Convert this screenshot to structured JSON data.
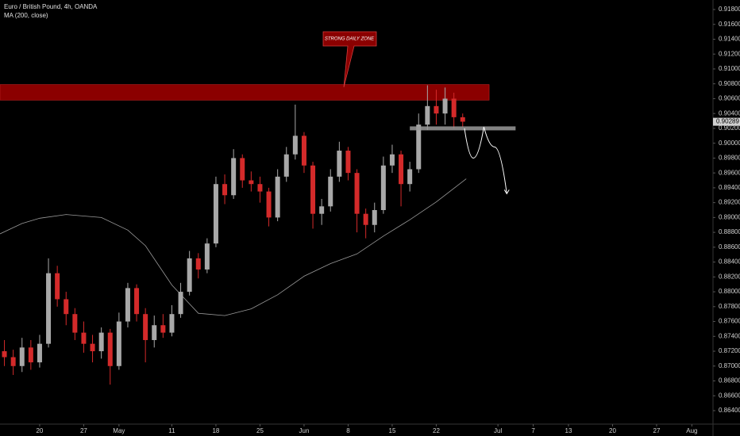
{
  "chart_data": {
    "type": "candlestick",
    "title": "Euro / British Pound, 4h, OANDA",
    "up_color": "#a8a8a8",
    "down_color": "#d42a2a",
    "grid": false,
    "xlim": [
      -4.5,
      76.4
    ],
    "xticks": [
      {
        "value": 0,
        "label": "20"
      },
      {
        "value": 5,
        "label": "27"
      },
      {
        "value": 9,
        "label": "May"
      },
      {
        "value": 15,
        "label": "11"
      },
      {
        "value": 20,
        "label": "18"
      },
      {
        "value": 25,
        "label": "25"
      },
      {
        "value": 30,
        "label": "Jun"
      },
      {
        "value": 35,
        "label": "8"
      },
      {
        "value": 40,
        "label": "15"
      },
      {
        "value": 45,
        "label": "22"
      },
      {
        "value": 52,
        "label": "Jul"
      },
      {
        "value": 56,
        "label": "7"
      },
      {
        "value": 60,
        "label": "13"
      },
      {
        "value": 65,
        "label": "20"
      },
      {
        "value": 70,
        "label": "27"
      },
      {
        "value": 74,
        "label": "Aug"
      }
    ],
    "ylim": [
      0.864,
      0.918
    ],
    "yticks": [
      {
        "value": 0.918,
        "label": "0.91800"
      },
      {
        "value": 0.916,
        "label": "0.91600"
      },
      {
        "value": 0.914,
        "label": "0.91400"
      },
      {
        "value": 0.912,
        "label": "0.91200"
      },
      {
        "value": 0.91,
        "label": "0.91000"
      },
      {
        "value": 0.908,
        "label": "0.90800"
      },
      {
        "value": 0.906,
        "label": "0.90600"
      },
      {
        "value": 0.904,
        "label": "0.90400"
      },
      {
        "value": 0.902,
        "label": "0.90200"
      },
      {
        "value": 0.9,
        "label": "0.90000"
      },
      {
        "value": 0.898,
        "label": "0.89800"
      },
      {
        "value": 0.896,
        "label": "0.89600"
      },
      {
        "value": 0.894,
        "label": "0.89400"
      },
      {
        "value": 0.892,
        "label": "0.89200"
      },
      {
        "value": 0.89,
        "label": "0.89000"
      },
      {
        "value": 0.888,
        "label": "0.88800"
      },
      {
        "value": 0.886,
        "label": "0.88600"
      },
      {
        "value": 0.884,
        "label": "0.88400"
      },
      {
        "value": 0.882,
        "label": "0.88200"
      },
      {
        "value": 0.88,
        "label": "0.88000"
      },
      {
        "value": 0.878,
        "label": "0.87800"
      },
      {
        "value": 0.876,
        "label": "0.87600"
      },
      {
        "value": 0.874,
        "label": "0.87400"
      },
      {
        "value": 0.872,
        "label": "0.87200"
      },
      {
        "value": 0.87,
        "label": "0.87000"
      },
      {
        "value": 0.868,
        "label": "0.86800"
      },
      {
        "value": 0.866,
        "label": "0.86600"
      },
      {
        "value": 0.864,
        "label": "0.86400"
      }
    ],
    "x": [
      -4,
      -3,
      -2,
      -1,
      0,
      1,
      2,
      3,
      4,
      5,
      6,
      7,
      8,
      9,
      10,
      11,
      12,
      13,
      14,
      15,
      16,
      17,
      18,
      19,
      20,
      21,
      22,
      23,
      24,
      25,
      26,
      27,
      28,
      29,
      30,
      31,
      32,
      33,
      34,
      35,
      36,
      37,
      38,
      39,
      40,
      41,
      42,
      43,
      44,
      45,
      46,
      47,
      48
    ],
    "open": [
      0.872,
      0.8712,
      0.87,
      0.8725,
      0.8705,
      0.873,
      0.8825,
      0.879,
      0.877,
      0.8745,
      0.873,
      0.872,
      0.8745,
      0.87,
      0.876,
      0.8805,
      0.877,
      0.8735,
      0.8755,
      0.8745,
      0.877,
      0.88,
      0.8845,
      0.883,
      0.8865,
      0.8945,
      0.893,
      0.898,
      0.895,
      0.8945,
      0.8935,
      0.89,
      0.8955,
      0.8985,
      0.901,
      0.897,
      0.8905,
      0.8915,
      0.8955,
      0.899,
      0.896,
      0.8905,
      0.889,
      0.891,
      0.897,
      0.8985,
      0.8945,
      0.8965,
      0.9025,
      0.905,
      0.904,
      0.906,
      0.9035
    ],
    "high": [
      0.8735,
      0.8722,
      0.8738,
      0.8735,
      0.8742,
      0.8845,
      0.8835,
      0.88,
      0.8778,
      0.876,
      0.8742,
      0.8752,
      0.875,
      0.8772,
      0.8812,
      0.881,
      0.8778,
      0.8768,
      0.877,
      0.8782,
      0.8812,
      0.8855,
      0.8852,
      0.8872,
      0.8955,
      0.8958,
      0.8992,
      0.8985,
      0.8962,
      0.8955,
      0.894,
      0.8965,
      0.8995,
      0.9052,
      0.9015,
      0.8975,
      0.8925,
      0.8965,
      0.9002,
      0.8995,
      0.8965,
      0.8912,
      0.892,
      0.8982,
      0.8998,
      0.899,
      0.8975,
      0.904,
      0.9078,
      0.9072,
      0.9075,
      0.9068,
      0.904
    ],
    "low": [
      0.87,
      0.8688,
      0.8692,
      0.8695,
      0.8698,
      0.8725,
      0.878,
      0.8755,
      0.8735,
      0.8718,
      0.8705,
      0.871,
      0.8675,
      0.8695,
      0.8752,
      0.876,
      0.8705,
      0.8725,
      0.8738,
      0.874,
      0.8765,
      0.8795,
      0.8818,
      0.8825,
      0.886,
      0.8918,
      0.8925,
      0.894,
      0.8935,
      0.892,
      0.8888,
      0.8895,
      0.8948,
      0.8978,
      0.896,
      0.8885,
      0.889,
      0.8908,
      0.8948,
      0.895,
      0.888,
      0.8872,
      0.888,
      0.8905,
      0.896,
      0.8915,
      0.8935,
      0.896,
      0.9018,
      0.9025,
      0.9025,
      0.902,
      0.9022
    ],
    "close": [
      0.8712,
      0.87,
      0.8725,
      0.8705,
      0.873,
      0.8825,
      0.879,
      0.877,
      0.8745,
      0.873,
      0.872,
      0.8745,
      0.87,
      0.876,
      0.8805,
      0.877,
      0.8735,
      0.8755,
      0.8745,
      0.877,
      0.88,
      0.8845,
      0.883,
      0.8865,
      0.8945,
      0.893,
      0.898,
      0.895,
      0.8945,
      0.8935,
      0.89,
      0.8955,
      0.8985,
      0.901,
      0.897,
      0.8905,
      0.8915,
      0.8955,
      0.899,
      0.896,
      0.8905,
      0.889,
      0.891,
      0.897,
      0.8985,
      0.8945,
      0.8965,
      0.9025,
      0.905,
      0.904,
      0.906,
      0.9035,
      0.9029
    ],
    "last_price": 0.90289,
    "ma": {
      "name": "MA (200, close)",
      "color": "#9a9a9a",
      "x": [
        -4.5,
        -2,
        0,
        3,
        7,
        10,
        12,
        15,
        18,
        21,
        24,
        27,
        30,
        33,
        36,
        39,
        42,
        45,
        48.4
      ],
      "values": [
        0.8878,
        0.8892,
        0.8899,
        0.8904,
        0.89,
        0.8883,
        0.8862,
        0.8809,
        0.8771,
        0.8768,
        0.8777,
        0.8796,
        0.8821,
        0.8838,
        0.8851,
        0.8875,
        0.8897,
        0.8921,
        0.8952
      ]
    },
    "zone": {
      "label": "STRONG DAILY ZONE",
      "color": "#8b0000",
      "x": [
        -4.5,
        51
      ],
      "y": [
        0.9058,
        0.9079
      ]
    },
    "level": {
      "color": "#9a9a9a",
      "x": [
        42,
        54
      ],
      "y": 0.902
    },
    "projection": {
      "color": "#ffffff",
      "x": [
        48.2,
        49.2,
        50.4,
        51.6,
        53
      ],
      "values": [
        0.902,
        0.898,
        0.9022,
        0.8995,
        0.8932
      ]
    }
  }
}
